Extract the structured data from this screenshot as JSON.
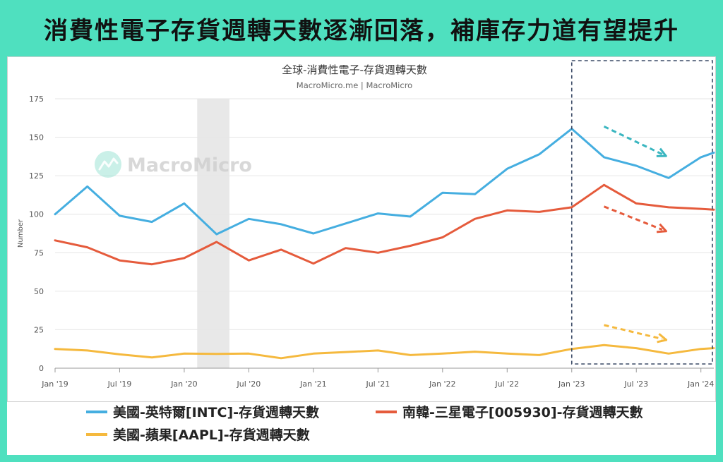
{
  "banner": {
    "title": "消費性電子存貨週轉天數逐漸回落，補庫存力道有望提升"
  },
  "watermark": {
    "text": "MacroMicro",
    "icon": "macromicro-logo-icon"
  },
  "colors": {
    "background": "#4fe0bf",
    "intel": "#45aee0",
    "samsung": "#e55b3c",
    "apple": "#f5b93e",
    "highlight_box": "#3a4a66",
    "shaded_band": "#e8e8e8",
    "arrow_teal": "#3ab6c0"
  },
  "chart_data": {
    "type": "line",
    "title": "全球-消費性電子-存貨週轉天數",
    "subtitle": "MacroMicro.me | MacroMicro",
    "xlabel": "",
    "ylabel": "Number",
    "ylim": [
      0,
      175
    ],
    "yticks": [
      0,
      25,
      50,
      75,
      100,
      125,
      150,
      175
    ],
    "xlim": [
      0,
      20.4
    ],
    "xticks": [
      {
        "x": 0,
        "label": "Jan '19"
      },
      {
        "x": 2,
        "label": "Jul '19"
      },
      {
        "x": 4,
        "label": "Jan '20"
      },
      {
        "x": 6,
        "label": "Jul '20"
      },
      {
        "x": 8,
        "label": "Jan '21"
      },
      {
        "x": 10,
        "label": "Jul '21"
      },
      {
        "x": 12,
        "label": "Jan '22"
      },
      {
        "x": 14,
        "label": "Jul '22"
      },
      {
        "x": 16,
        "label": "Jan '23"
      },
      {
        "x": 18,
        "label": "Jul '23"
      },
      {
        "x": 20,
        "label": "Jan '24"
      }
    ],
    "grid": "horizontal",
    "legend_position": "bottom",
    "shaded_region": [
      4.4,
      5.4
    ],
    "highlight_box": [
      16,
      20.4
    ],
    "series": [
      {
        "name": "美國-英特爾[INTC]-存貨週轉天數",
        "x": [
          0,
          1,
          2,
          3,
          4,
          5,
          6,
          7,
          8,
          9,
          10,
          11,
          12,
          13,
          14,
          15,
          16,
          17,
          18,
          19,
          20,
          20.4
        ],
        "values": [
          100,
          118,
          99,
          95,
          107,
          87,
          97,
          93.5,
          87.5,
          94,
          100.5,
          98.5,
          114,
          113,
          129.5,
          139,
          155.5,
          137,
          131.5,
          123.5,
          137,
          140
        ]
      },
      {
        "name": "南韓-三星電子[005930]-存貨週轉天數",
        "x": [
          0,
          1,
          2,
          3,
          4,
          5,
          6,
          7,
          8,
          9,
          10,
          11,
          12,
          13,
          14,
          15,
          16,
          17,
          18,
          19,
          20,
          20.4
        ],
        "values": [
          83,
          78.5,
          70,
          67.5,
          71.5,
          82,
          70,
          77,
          68,
          78,
          75,
          79.5,
          85,
          97,
          102.5,
          101.5,
          104.5,
          119,
          107,
          104.5,
          103.5,
          103
        ]
      },
      {
        "name": "美國-蘋果[AAPL]-存貨週轉天數",
        "x": [
          0,
          1,
          2,
          3,
          4,
          5,
          6,
          7,
          8,
          9,
          10,
          11,
          12,
          13,
          14,
          15,
          16,
          17,
          18,
          19,
          20,
          20.4
        ],
        "values": [
          12.5,
          11.5,
          9,
          7,
          9.5,
          9.3,
          9.5,
          6.5,
          9.5,
          10.5,
          11.5,
          8.5,
          9.5,
          10.7,
          9.5,
          8.5,
          12.5,
          15,
          13,
          9.5,
          12.5,
          13
        ]
      }
    ],
    "annotations": [
      {
        "type": "arrow",
        "series": 0,
        "from": [
          17.0,
          157
        ],
        "to": [
          18.8,
          139
        ]
      },
      {
        "type": "arrow",
        "series": 1,
        "from": [
          17.0,
          105
        ],
        "to": [
          18.8,
          90
        ]
      },
      {
        "type": "arrow",
        "series": 2,
        "from": [
          17.0,
          28
        ],
        "to": [
          18.8,
          19
        ]
      }
    ]
  }
}
